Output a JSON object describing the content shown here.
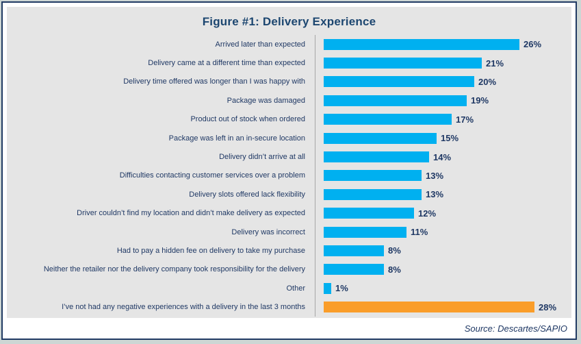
{
  "title": "Figure #1: Delivery Experience",
  "source_caption": "Source: Descartes/SAPIO",
  "colors": {
    "bar_blue": "#00B0F0",
    "bar_orange": "#FA9D29",
    "text_navy": "#1F3864",
    "title_navy": "#1C4670",
    "panel_gray": "#E5E5E5",
    "axis_gray": "#A6A6A6",
    "frame_border_navy": "#203A63",
    "outer_edge_gray": "#CDD6D4"
  },
  "chart_data": {
    "type": "bar",
    "orientation": "horizontal",
    "title": "Figure #1: Delivery Experience",
    "xlabel": "",
    "ylabel": "",
    "xlim": [
      0,
      28
    ],
    "grid": false,
    "legend": "none",
    "highlight_index": 14,
    "categories": [
      "Arrived later than expected",
      "Delivery came at a different time than expected",
      "Delivery time offered was longer than I was happy with",
      "Package was damaged",
      "Product out of stock when ordered",
      "Package was left in an in-secure location",
      "Delivery didn’t arrive at all",
      "Difficulties contacting customer services over a problem",
      "Delivery slots offered lack flexibility",
      "Driver couldn’t find my location and didn’t make delivery as expected",
      "Delivery was incorrect",
      "Had to pay a hidden fee on delivery to take my purchase",
      "Neither the retailer nor the delivery company took responsibility for the delivery",
      "Other",
      "I’ve not had any negative experiences with a delivery in the last 3 months"
    ],
    "values": [
      26,
      21,
      20,
      19,
      17,
      15,
      14,
      13,
      13,
      12,
      11,
      8,
      8,
      1,
      28
    ],
    "value_labels": [
      "26%",
      "21%",
      "20%",
      "19%",
      "17%",
      "15%",
      "14%",
      "13%",
      "13%",
      "12%",
      "11%",
      "8%",
      "8%",
      "1%",
      "28%"
    ]
  }
}
